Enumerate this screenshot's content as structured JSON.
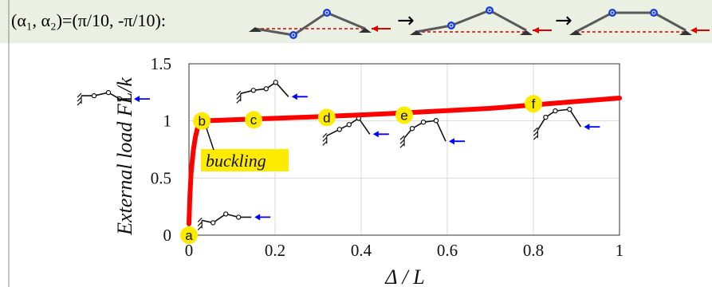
{
  "header": {
    "condition": "(α₁, α₂)=(π/10, -π/10):"
  },
  "chart_data": {
    "type": "line",
    "xlabel": "Δ / L",
    "ylabel": "External load  FL/k",
    "xlim": [
      0,
      1
    ],
    "ylim": [
      0,
      1.5
    ],
    "xticks": [
      "0",
      "0.2",
      "0.4",
      "0.6",
      "0.8",
      "1"
    ],
    "xtick_values": [
      0,
      0.2,
      0.4,
      0.6,
      0.8,
      1
    ],
    "yticks": [
      "0",
      "0.5",
      "1",
      "1.5"
    ],
    "ytick_values": [
      0,
      0.5,
      1,
      1.5
    ],
    "grid": true,
    "series": [
      {
        "color": "#ff0000",
        "x": [
          0.0,
          0.002,
          0.005,
          0.01,
          0.015,
          0.02,
          0.025,
          0.03,
          0.1,
          0.2,
          0.3,
          0.4,
          0.5,
          0.6,
          0.7,
          0.8,
          0.9,
          1.0
        ],
        "y": [
          0.1,
          0.33,
          0.55,
          0.74,
          0.86,
          0.94,
          0.98,
          1.0,
          1.01,
          1.023,
          1.037,
          1.053,
          1.07,
          1.09,
          1.11,
          1.14,
          1.17,
          1.2
        ]
      }
    ],
    "points": [
      {
        "label": "a",
        "x": 0.0,
        "y": 0.0
      },
      {
        "label": "b",
        "x": 0.03,
        "y": 1.0
      },
      {
        "label": "c",
        "x": 0.15,
        "y": 1.01
      },
      {
        "label": "d",
        "x": 0.32,
        "y": 1.03
      },
      {
        "label": "e",
        "x": 0.5,
        "y": 1.05
      },
      {
        "label": "f",
        "x": 0.8,
        "y": 1.15
      }
    ],
    "annotation": "buckling",
    "point_color": "#ffeb00",
    "insets": [
      {
        "x": 0.03,
        "y": 0.13
      },
      {
        "x": -0.25,
        "y": 1.22
      },
      {
        "x": 0.12,
        "y": 1.24
      },
      {
        "x": 0.32,
        "y": 0.87
      },
      {
        "x": 0.5,
        "y": 0.85
      },
      {
        "x": 0.81,
        "y": 0.92
      }
    ]
  },
  "colors": {
    "curve": "#ff0000",
    "point_marker": "#ffeb00",
    "arrow": "#0000ff",
    "header_bg": "#eaf0e2"
  }
}
